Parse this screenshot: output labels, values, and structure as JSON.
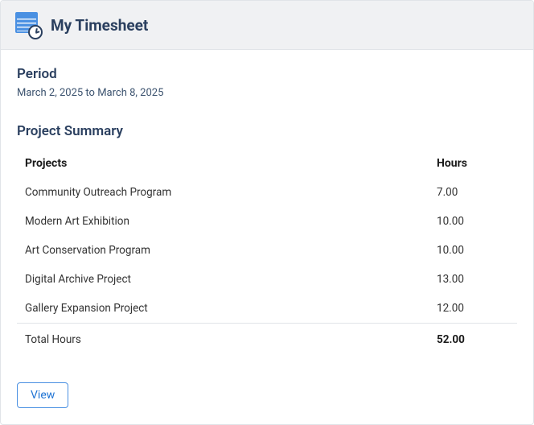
{
  "header": {
    "title": "My Timesheet"
  },
  "period": {
    "label": "Period",
    "range": "March 2, 2025 to March 8, 2025"
  },
  "summary": {
    "label": "Project Summary",
    "columns": {
      "project": "Projects",
      "hours": "Hours"
    },
    "rows": [
      {
        "project": "Community Outreach Program",
        "hours": "7.00"
      },
      {
        "project": "Modern Art Exhibition",
        "hours": "10.00"
      },
      {
        "project": "Art Conservation Program",
        "hours": "10.00"
      },
      {
        "project": "Digital Archive Project",
        "hours": "13.00"
      },
      {
        "project": "Gallery Expansion Project",
        "hours": "12.00"
      }
    ],
    "total": {
      "label": "Total Hours",
      "hours": "52.00"
    }
  },
  "footer": {
    "view_label": "View"
  }
}
